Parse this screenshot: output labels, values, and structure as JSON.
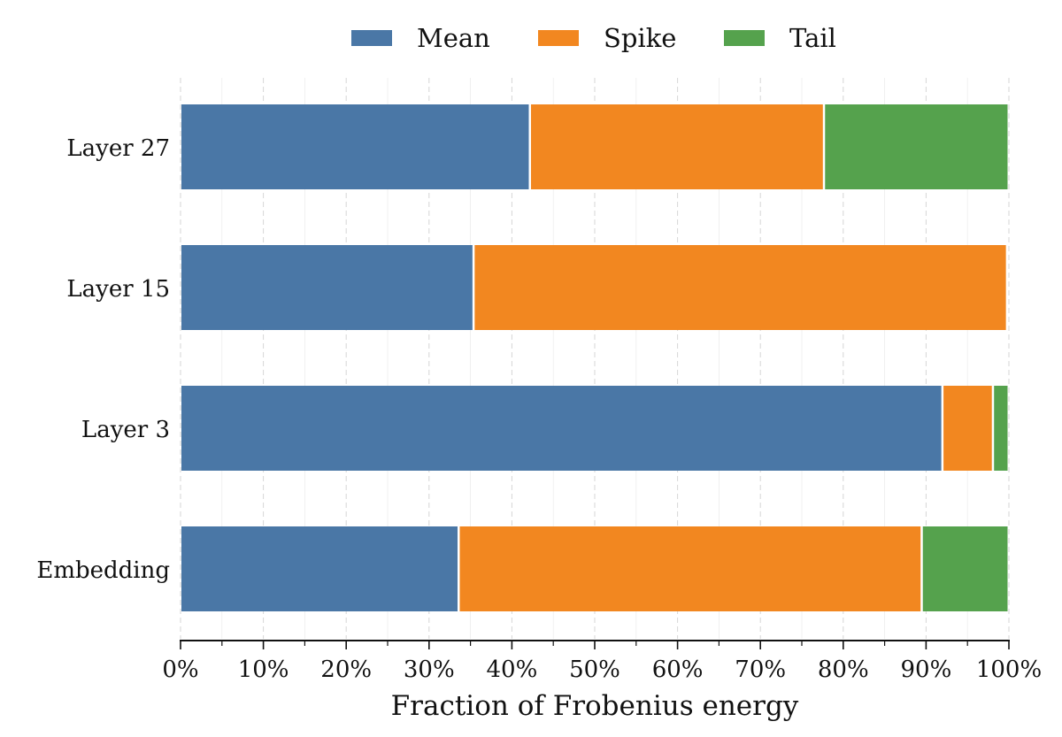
{
  "chart_data": {
    "type": "bar",
    "orientation": "horizontal",
    "stacked": true,
    "title": "",
    "xlabel": "Fraction of Frobenius energy",
    "ylabel": "",
    "xlim": [
      0,
      100
    ],
    "x_unit": "%",
    "xticks": [
      "0%",
      "10%",
      "20%",
      "30%",
      "40%",
      "50%",
      "60%",
      "70%",
      "80%",
      "90%",
      "100%"
    ],
    "grid": true,
    "legend_position": "top",
    "categories": [
      "Layer 27",
      "Layer 15",
      "Layer 3",
      "Embedding"
    ],
    "series": [
      {
        "name": "Mean",
        "color": "#4a77a6",
        "values": [
          42.2,
          35.4,
          92.0,
          33.6
        ]
      },
      {
        "name": "Spike",
        "color": "#f28720",
        "values": [
          35.5,
          64.4,
          6.1,
          55.9
        ]
      },
      {
        "name": "Tail",
        "color": "#55a24d",
        "values": [
          22.3,
          0.2,
          1.9,
          10.5
        ]
      }
    ]
  }
}
